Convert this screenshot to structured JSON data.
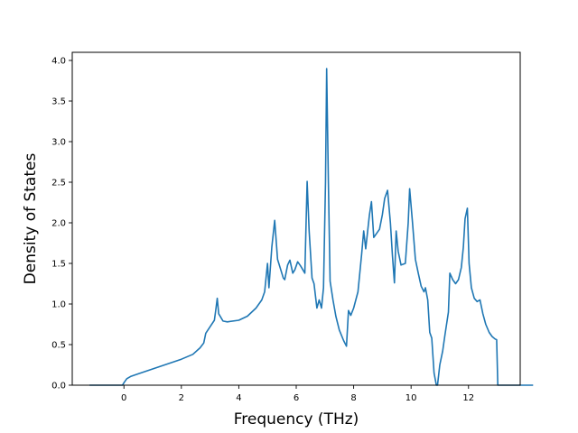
{
  "chart_data": {
    "type": "line",
    "xlabel": "Frequency (THz)",
    "ylabel": "Density of States",
    "xlim": [
      -1.8,
      13.8
    ],
    "ylim": [
      0.0,
      4.1
    ],
    "xticks": [
      0,
      2,
      4,
      6,
      8,
      10,
      12
    ],
    "yticks": [
      0.0,
      0.5,
      1.0,
      1.5,
      2.0,
      2.5,
      3.0,
      3.5,
      4.0
    ],
    "xtick_labels": [
      "0",
      "2",
      "4",
      "6",
      "8",
      "10",
      "12"
    ],
    "ytick_labels": [
      "0.0",
      "0.5",
      "1.0",
      "1.5",
      "2.0",
      "2.5",
      "3.0",
      "3.5",
      "4.0"
    ],
    "grid": false,
    "colors": {
      "line": "#1f77b4",
      "axes": "#000000",
      "background": "#ffffff"
    },
    "series": [
      {
        "points": [
          [
            -1.2,
            0.0
          ],
          [
            -0.05,
            0.0
          ],
          [
            0.0,
            0.03
          ],
          [
            0.1,
            0.08
          ],
          [
            0.25,
            0.11
          ],
          [
            0.5,
            0.14
          ],
          [
            1.0,
            0.2
          ],
          [
            1.5,
            0.26
          ],
          [
            2.0,
            0.32
          ],
          [
            2.4,
            0.38
          ],
          [
            2.65,
            0.46
          ],
          [
            2.78,
            0.52
          ],
          [
            2.85,
            0.64
          ],
          [
            3.0,
            0.72
          ],
          [
            3.15,
            0.8
          ],
          [
            3.2,
            0.93
          ],
          [
            3.25,
            1.07
          ],
          [
            3.3,
            0.88
          ],
          [
            3.45,
            0.79
          ],
          [
            3.6,
            0.78
          ],
          [
            4.0,
            0.8
          ],
          [
            4.3,
            0.85
          ],
          [
            4.6,
            0.95
          ],
          [
            4.8,
            1.05
          ],
          [
            4.9,
            1.15
          ],
          [
            5.0,
            1.5
          ],
          [
            5.05,
            1.2
          ],
          [
            5.15,
            1.7
          ],
          [
            5.25,
            2.03
          ],
          [
            5.35,
            1.55
          ],
          [
            5.55,
            1.32
          ],
          [
            5.6,
            1.3
          ],
          [
            5.7,
            1.48
          ],
          [
            5.78,
            1.54
          ],
          [
            5.88,
            1.38
          ],
          [
            5.95,
            1.42
          ],
          [
            6.05,
            1.52
          ],
          [
            6.15,
            1.47
          ],
          [
            6.3,
            1.38
          ],
          [
            6.38,
            2.51
          ],
          [
            6.45,
            1.9
          ],
          [
            6.55,
            1.32
          ],
          [
            6.62,
            1.25
          ],
          [
            6.72,
            0.95
          ],
          [
            6.8,
            1.05
          ],
          [
            6.88,
            0.95
          ],
          [
            6.95,
            1.2
          ],
          [
            7.02,
            2.5
          ],
          [
            7.06,
            3.9
          ],
          [
            7.12,
            2.5
          ],
          [
            7.18,
            1.28
          ],
          [
            7.28,
            1.05
          ],
          [
            7.38,
            0.85
          ],
          [
            7.5,
            0.68
          ],
          [
            7.65,
            0.55
          ],
          [
            7.75,
            0.48
          ],
          [
            7.82,
            0.92
          ],
          [
            7.9,
            0.86
          ],
          [
            8.0,
            0.95
          ],
          [
            8.15,
            1.15
          ],
          [
            8.28,
            1.62
          ],
          [
            8.35,
            1.9
          ],
          [
            8.42,
            1.68
          ],
          [
            8.55,
            2.1
          ],
          [
            8.62,
            2.26
          ],
          [
            8.7,
            1.82
          ],
          [
            8.8,
            1.87
          ],
          [
            8.9,
            1.92
          ],
          [
            9.0,
            2.1
          ],
          [
            9.08,
            2.3
          ],
          [
            9.18,
            2.4
          ],
          [
            9.28,
            2.0
          ],
          [
            9.35,
            1.6
          ],
          [
            9.42,
            1.26
          ],
          [
            9.48,
            1.9
          ],
          [
            9.55,
            1.65
          ],
          [
            9.65,
            1.48
          ],
          [
            9.8,
            1.5
          ],
          [
            9.9,
            2.0
          ],
          [
            9.95,
            2.42
          ],
          [
            10.05,
            2.0
          ],
          [
            10.15,
            1.55
          ],
          [
            10.25,
            1.38
          ],
          [
            10.35,
            1.22
          ],
          [
            10.45,
            1.15
          ],
          [
            10.5,
            1.2
          ],
          [
            10.58,
            1.05
          ],
          [
            10.65,
            0.65
          ],
          [
            10.72,
            0.58
          ],
          [
            10.8,
            0.15
          ],
          [
            10.88,
            0.0
          ],
          [
            10.92,
            0.0
          ],
          [
            11.0,
            0.25
          ],
          [
            11.1,
            0.42
          ],
          [
            11.18,
            0.62
          ],
          [
            11.3,
            0.9
          ],
          [
            11.35,
            1.38
          ],
          [
            11.45,
            1.3
          ],
          [
            11.55,
            1.25
          ],
          [
            11.65,
            1.3
          ],
          [
            11.75,
            1.45
          ],
          [
            11.82,
            1.7
          ],
          [
            11.88,
            2.05
          ],
          [
            11.96,
            2.18
          ],
          [
            12.02,
            1.5
          ],
          [
            12.1,
            1.2
          ],
          [
            12.2,
            1.07
          ],
          [
            12.3,
            1.03
          ],
          [
            12.4,
            1.05
          ],
          [
            12.5,
            0.88
          ],
          [
            12.6,
            0.75
          ],
          [
            12.72,
            0.65
          ],
          [
            12.82,
            0.6
          ],
          [
            12.92,
            0.57
          ],
          [
            12.98,
            0.56
          ],
          [
            13.02,
            0.0
          ],
          [
            14.25,
            0.0
          ]
        ]
      }
    ]
  }
}
